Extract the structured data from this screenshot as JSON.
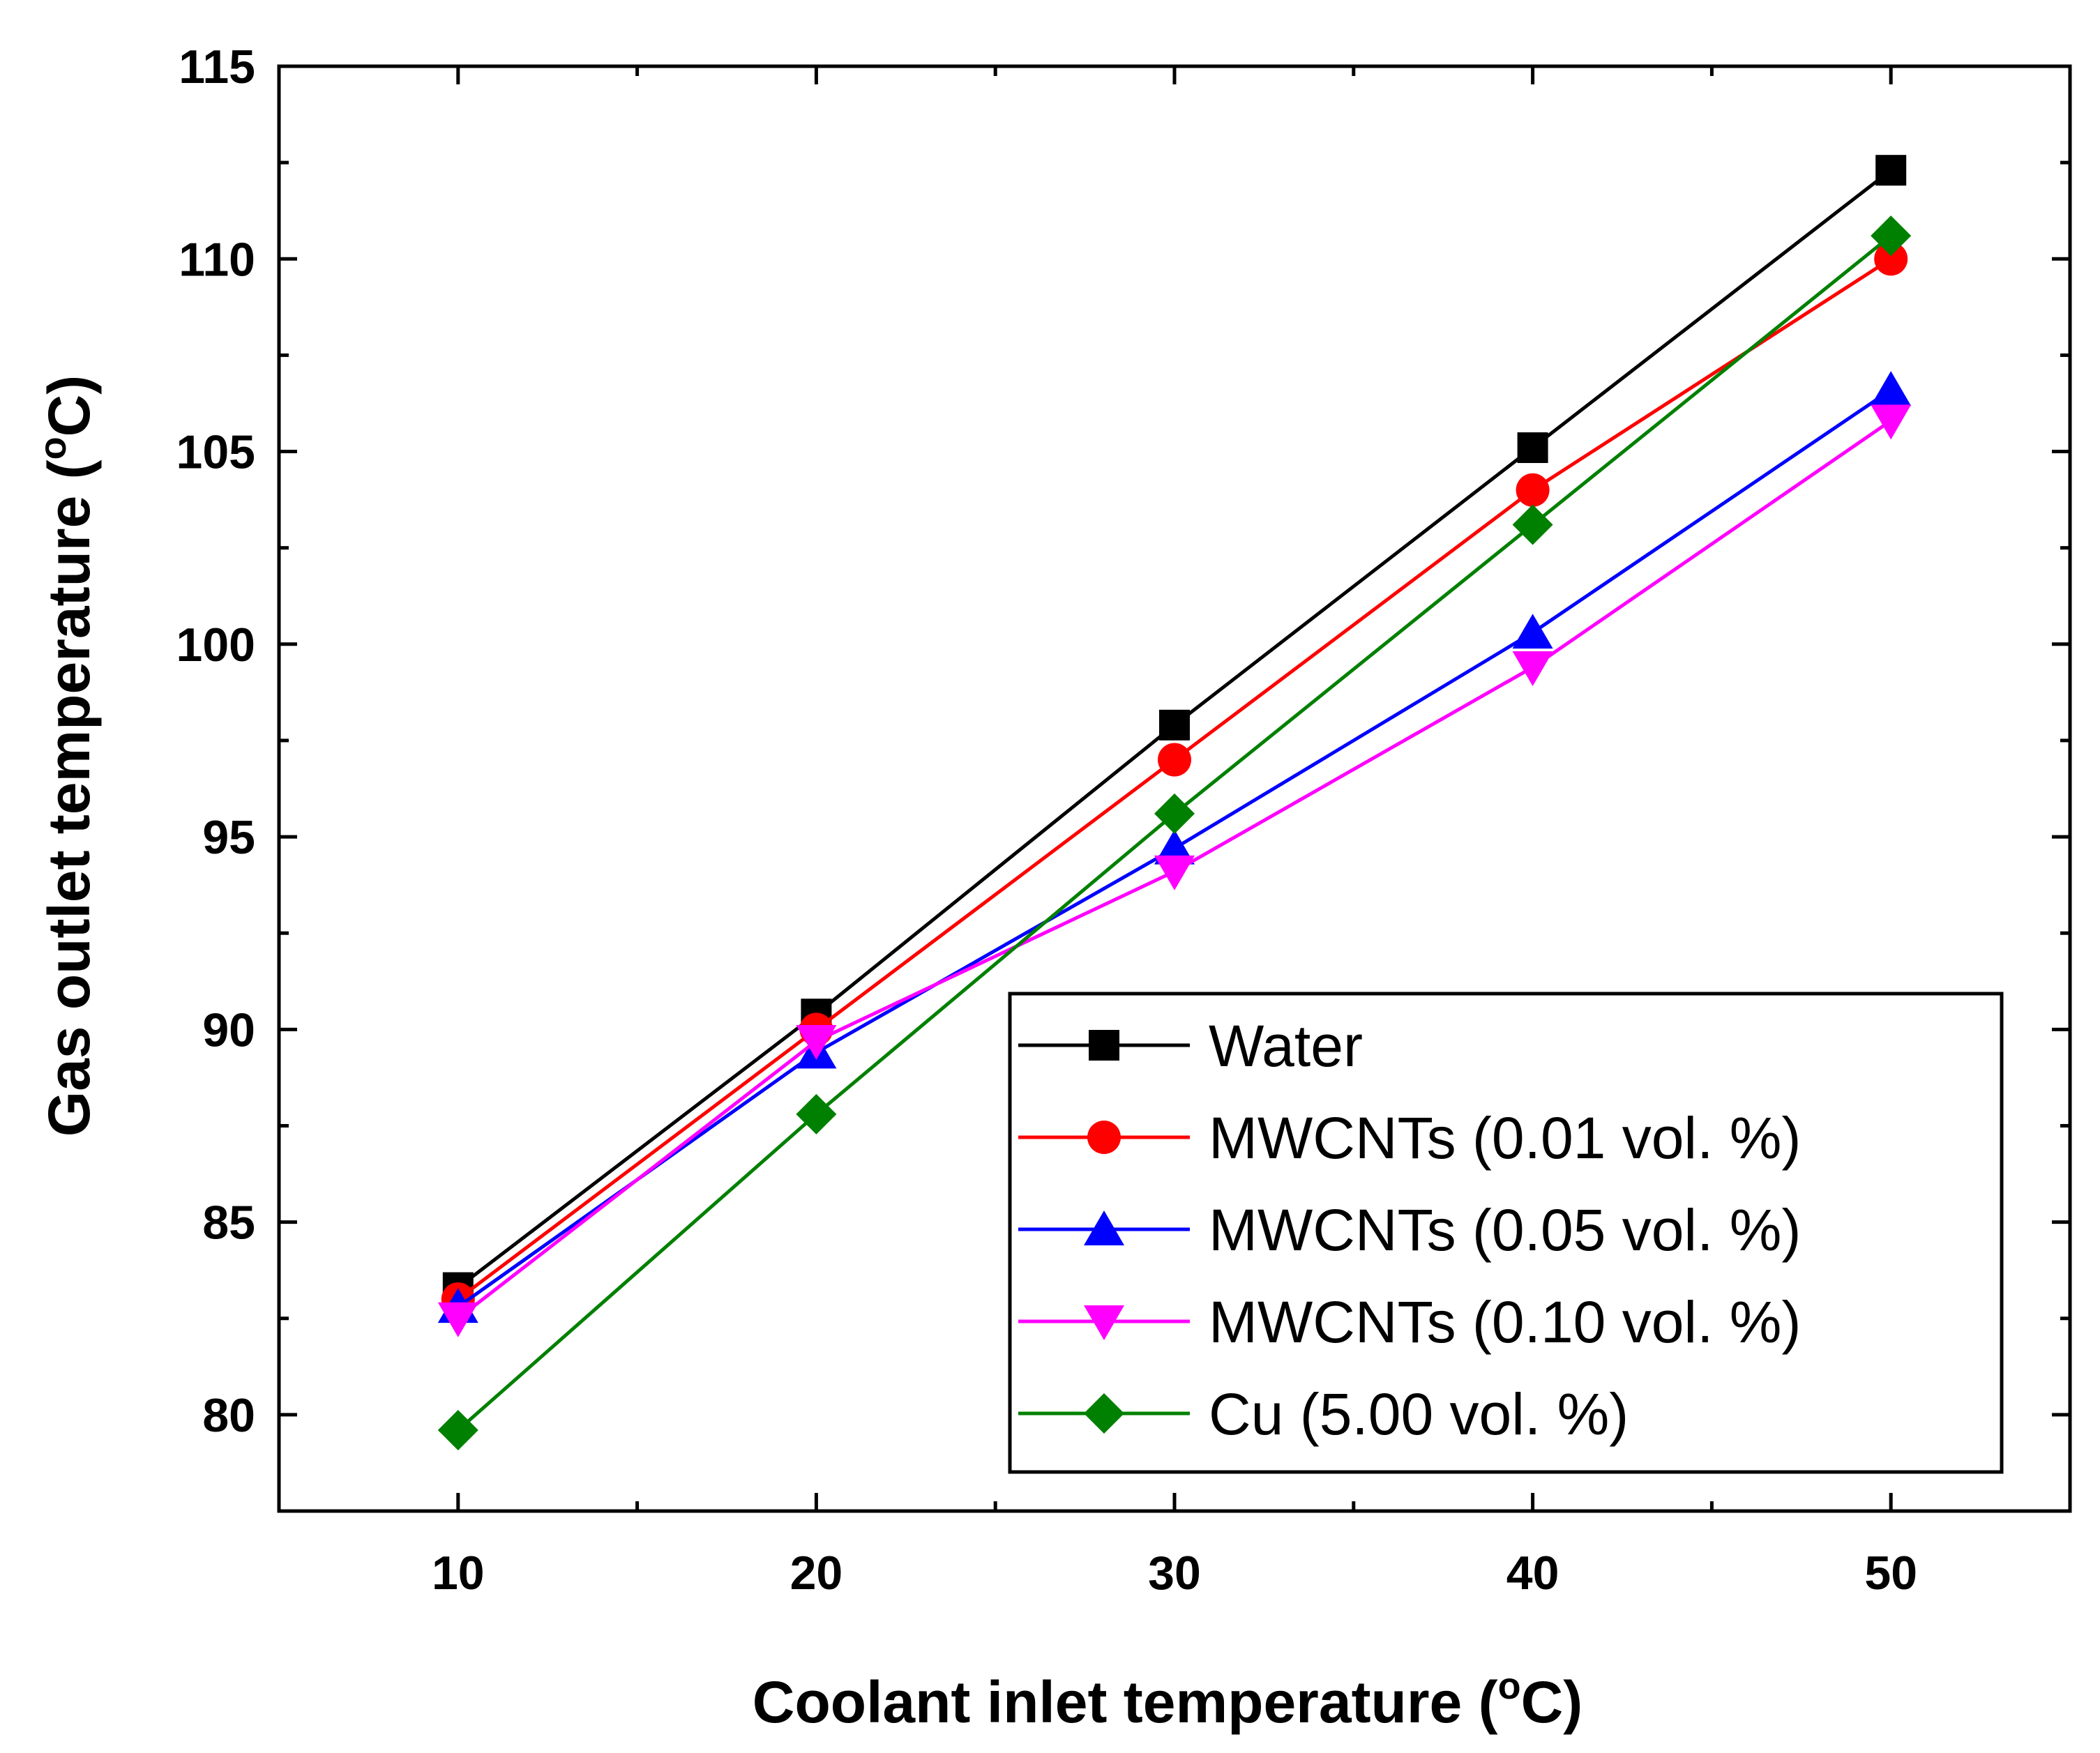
{
  "chart_data": {
    "type": "line",
    "title": "",
    "xlabel": "Coolant inlet temperature (°C)",
    "xlabel_parts": {
      "pre": "Coolant inlet temperature (",
      "sup": "o",
      "post": "C)"
    },
    "ylabel": "Gas outlet temperature (°C)",
    "ylabel_parts": {
      "pre": "Gas outlet temperature (",
      "sup": "o",
      "post": "C)"
    },
    "x": [
      10,
      20,
      30,
      40,
      50
    ],
    "xlim": [
      5,
      55
    ],
    "ylim": [
      77.5,
      115
    ],
    "xticks": [
      10,
      20,
      30,
      40,
      50
    ],
    "yticks": [
      80,
      85,
      90,
      95,
      100,
      105,
      110,
      115
    ],
    "grid": false,
    "legend_position": "bottom-right",
    "series": [
      {
        "name": "Water",
        "color": "#000000",
        "marker": "square",
        "values": [
          83.3,
          90.4,
          97.9,
          105.1,
          112.3
        ]
      },
      {
        "name": "MWCNTs (0.01 vol. %)",
        "color": "#ff0000",
        "marker": "circle",
        "values": [
          83.0,
          90.0,
          97.0,
          104.0,
          110.0
        ]
      },
      {
        "name": "MWCNTs (0.05 vol. %)",
        "color": "#0000ff",
        "marker": "triangle-up",
        "values": [
          82.8,
          89.4,
          94.7,
          100.3,
          106.6
        ]
      },
      {
        "name": "MWCNTs (0.10 vol. %)",
        "color": "#ff00ff",
        "marker": "triangle-down",
        "values": [
          82.5,
          89.7,
          94.1,
          99.4,
          105.8
        ]
      },
      {
        "name": "Cu (5.00 vol. %)",
        "color": "#008000",
        "marker": "diamond",
        "values": [
          79.6,
          87.8,
          95.6,
          103.1,
          110.6
        ]
      }
    ]
  }
}
